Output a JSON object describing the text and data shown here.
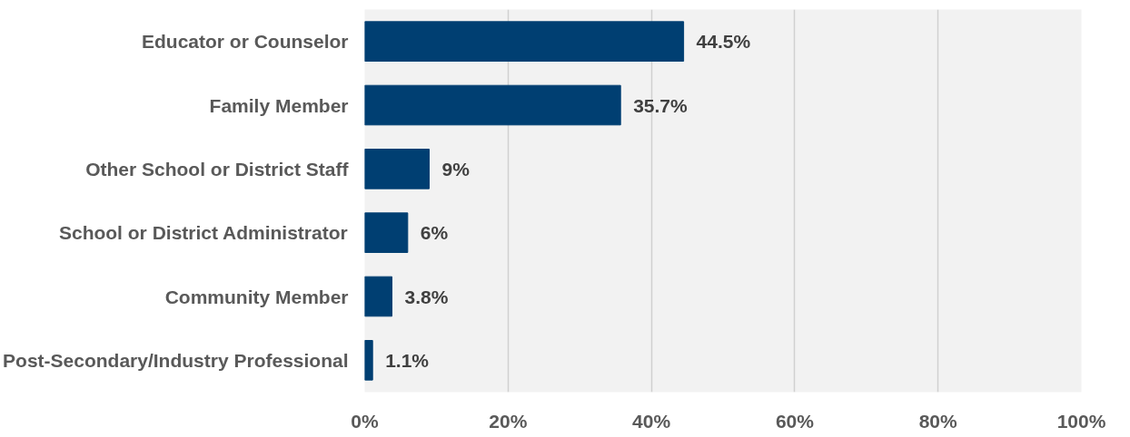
{
  "chart_data": {
    "type": "bar",
    "orientation": "horizontal",
    "categories": [
      "Educator or Counselor",
      "Family Member",
      "Other School or District Staff",
      "School or District Administrator",
      "Community Member",
      "Post-Secondary/Industry Professional"
    ],
    "values": [
      44.5,
      35.7,
      9,
      6,
      3.8,
      1.1
    ],
    "value_labels": [
      "44.5%",
      "35.7%",
      "9%",
      "6%",
      "3.8%",
      "1.1%"
    ],
    "color": "#003f72",
    "xlim": [
      0,
      100
    ],
    "xticks": [
      {
        "value": 0,
        "label": "0%"
      },
      {
        "value": 20,
        "label": "20%"
      },
      {
        "value": 40,
        "label": "40%"
      },
      {
        "value": 60,
        "label": "60%"
      },
      {
        "value": 80,
        "label": "80%"
      },
      {
        "value": 100,
        "label": "100%"
      }
    ],
    "grid": "x"
  }
}
